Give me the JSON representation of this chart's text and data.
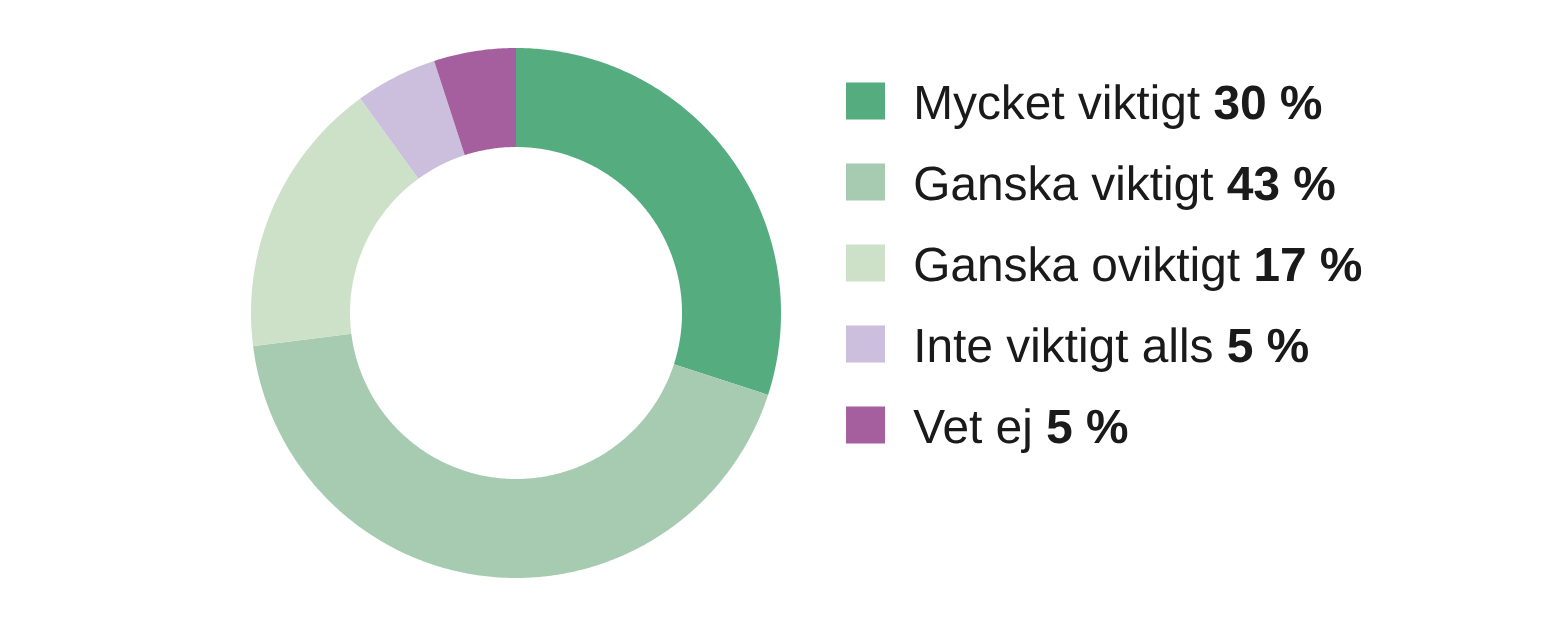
{
  "chart_data": {
    "type": "donut",
    "categories": [
      "Mycket viktigt",
      "Ganska viktigt",
      "Ganska oviktigt",
      "Inte viktigt alls",
      "Vet ej"
    ],
    "values": [
      30,
      43,
      17,
      5,
      5
    ],
    "value_labels": [
      "30 %",
      "43 %",
      "17 %",
      "5 %",
      "5 %"
    ],
    "colors": [
      "#55ac7e",
      "#a6cbb1",
      "#cde1c8",
      "#ccbedd",
      "#a55f9e"
    ],
    "legend": "right"
  }
}
